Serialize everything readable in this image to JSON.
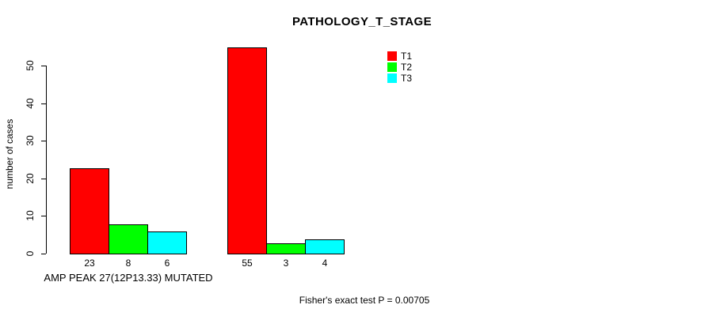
{
  "chart_data": {
    "type": "bar",
    "title": "PATHOLOGY_T_STAGE",
    "ylabel": "number of cases",
    "xlabel": "",
    "ylim": [
      0,
      50
    ],
    "yticks": [
      0,
      10,
      20,
      30,
      40,
      50
    ],
    "grid": false,
    "legend_position": "top-right",
    "categories": [
      "AMP PEAK 27(12P13.33) MUTATED",
      ""
    ],
    "series": [
      {
        "name": "T1",
        "color": "#ff0000",
        "values": [
          23,
          55
        ]
      },
      {
        "name": "T2",
        "color": "#00ff00",
        "values": [
          8,
          3
        ]
      },
      {
        "name": "T3",
        "color": "#00ffff",
        "values": [
          6,
          4
        ]
      }
    ],
    "bar_border_color": "#000000",
    "annotation": "Fisher's exact test P = 0.00705"
  }
}
